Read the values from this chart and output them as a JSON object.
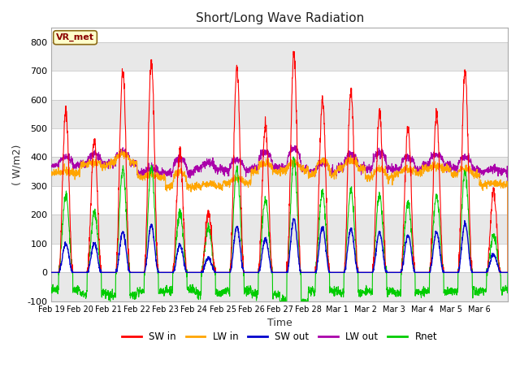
{
  "title": "Short/Long Wave Radiation",
  "xlabel": "Time",
  "ylabel": "( W/m2)",
  "ylim": [
    -100,
    850
  ],
  "yticks": [
    -100,
    0,
    100,
    200,
    300,
    400,
    500,
    600,
    700,
    800
  ],
  "bg_color": "#ffffff",
  "plot_bg": "#ffffff",
  "annotation_text": "VR_met",
  "legend": [
    "SW in",
    "LW in",
    "SW out",
    "LW out",
    "Rnet"
  ],
  "colors": {
    "SW in": "#ff0000",
    "LW in": "#ffa500",
    "SW out": "#0000cc",
    "LW out": "#aa00aa",
    "Rnet": "#00cc00"
  },
  "n_days": 16,
  "xtick_labels": [
    "Feb 19",
    "Feb 20",
    "Feb 21",
    "Feb 22",
    "Feb 23",
    "Feb 24",
    "Feb 25",
    "Feb 26",
    "Feb 27",
    "Feb 28",
    "Mar 1",
    "Mar 2",
    "Mar 3",
    "Mar 4",
    "Mar 5",
    "Mar 6"
  ],
  "day_peaks_SW_in": [
    560,
    460,
    700,
    730,
    420,
    205,
    710,
    510,
    760,
    600,
    630,
    550,
    500,
    550,
    705,
    280
  ],
  "day_peaks_LW_in": [
    350,
    380,
    410,
    340,
    350,
    310,
    325,
    380,
    380,
    390,
    390,
    360,
    360,
    370,
    360,
    310
  ],
  "day_night_LW_in": [
    345,
    370,
    380,
    330,
    300,
    300,
    310,
    350,
    355,
    340,
    360,
    330,
    345,
    360,
    340,
    305
  ],
  "day_peaks_LW_out": [
    400,
    410,
    420,
    360,
    395,
    380,
    390,
    420,
    430,
    380,
    410,
    415,
    400,
    410,
    400,
    360
  ],
  "day_night_LW_out": [
    370,
    375,
    380,
    345,
    345,
    360,
    355,
    365,
    360,
    350,
    365,
    360,
    360,
    375,
    360,
    350
  ],
  "day_peaks_Rnet": [
    270,
    210,
    360,
    365,
    205,
    155,
    360,
    255,
    395,
    280,
    285,
    270,
    245,
    265,
    355,
    130
  ],
  "day_night_Rnet": [
    -60,
    -75,
    -80,
    -65,
    -60,
    -70,
    -65,
    -75,
    -100,
    -65,
    -70,
    -65,
    -70,
    -65,
    -65,
    -60
  ],
  "day_peaks_SW_out": [
    100,
    100,
    140,
    165,
    95,
    50,
    160,
    115,
    185,
    155,
    150,
    140,
    130,
    140,
    170,
    65
  ],
  "band_colors": [
    "#e8e8e8",
    "#ffffff"
  ]
}
